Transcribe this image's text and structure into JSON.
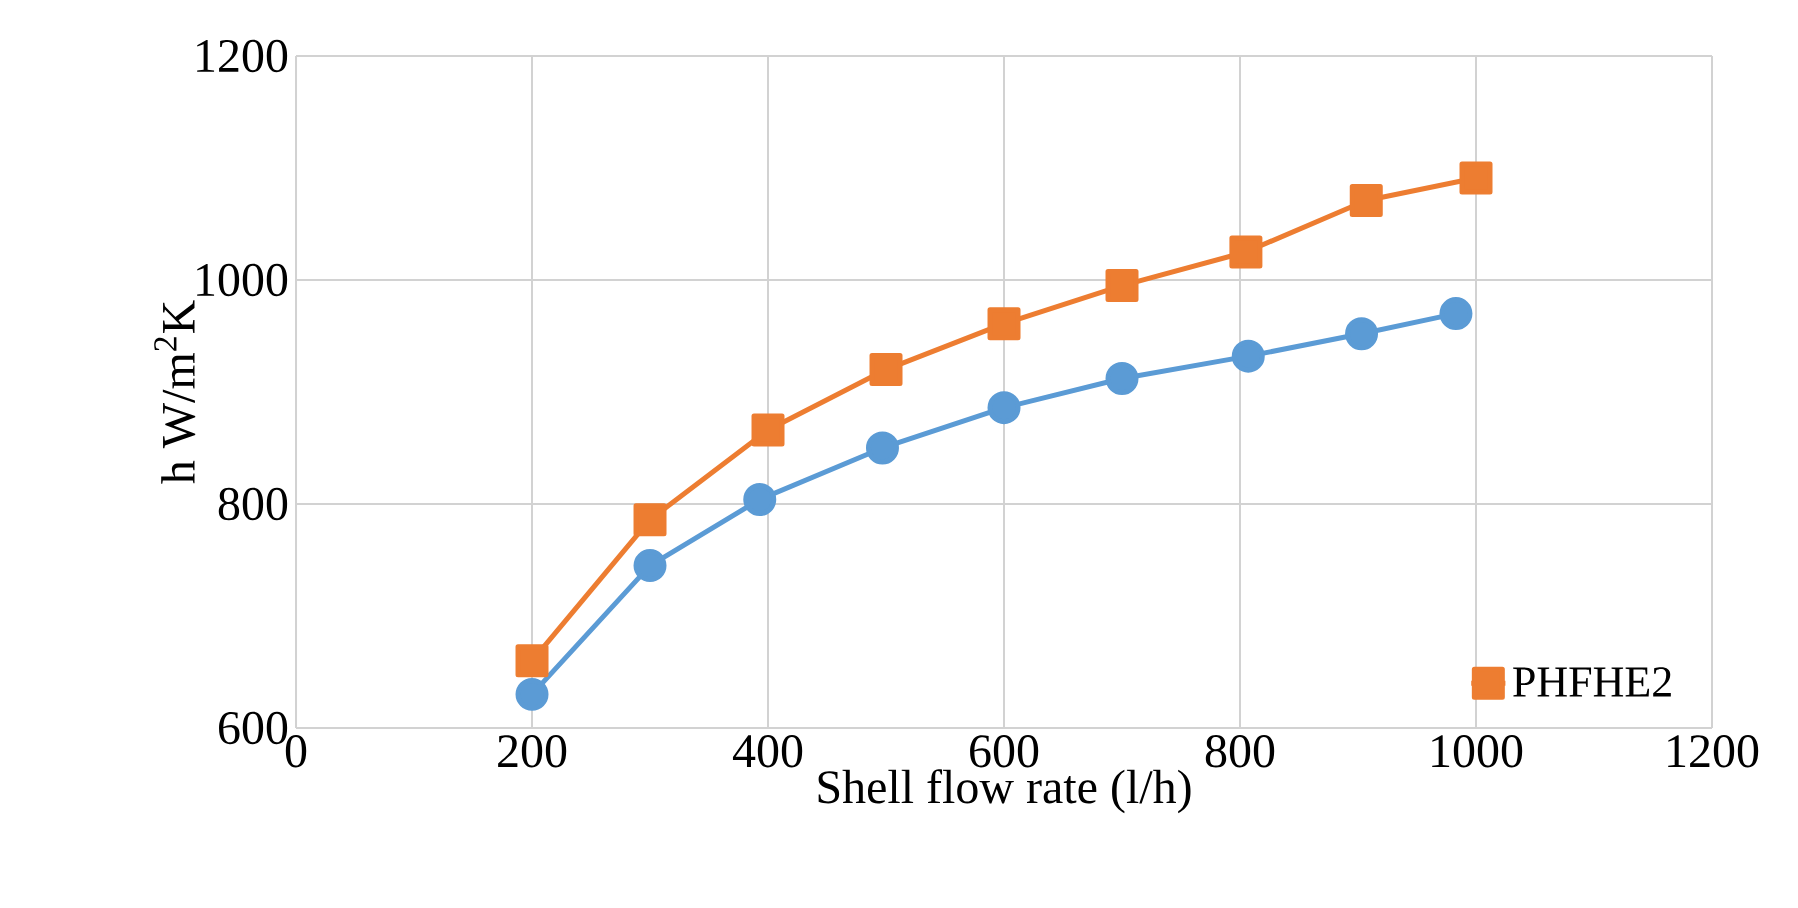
{
  "chart_data": {
    "type": "line",
    "xlabel": "Shell flow rate (l/h)",
    "ylabel": "h W/m$^{2}$K",
    "xlim": [
      0,
      1200
    ],
    "ylim": [
      600,
      1200
    ],
    "xticks": [
      0,
      200,
      400,
      600,
      800,
      1000,
      1200
    ],
    "yticks": [
      600,
      800,
      1000,
      1200
    ],
    "grid": true,
    "legend": "bottom right",
    "series": [
      {
        "color": "#5b9bd5",
        "marker": "circle",
        "x": [
          200,
          300,
          393,
          497,
          600,
          700,
          807,
          903,
          983
        ],
        "values": [
          630,
          745,
          804,
          850,
          886,
          912,
          932,
          952,
          970
        ]
      },
      {
        "name": "PHFHE2",
        "color": "#ed7d31",
        "marker": "square",
        "x": [
          200,
          300,
          400,
          500,
          600,
          700,
          805,
          907,
          1000
        ],
        "values": [
          660,
          786,
          866,
          920,
          961,
          995,
          1025,
          1071,
          1091
        ]
      }
    ]
  }
}
